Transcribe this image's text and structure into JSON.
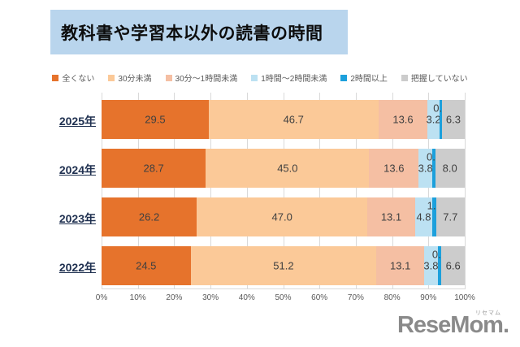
{
  "title": "教科書や学習本以外の読書の時間",
  "chart_data": {
    "type": "bar",
    "stacked": true,
    "orientation": "horizontal",
    "title": "教科書や学習本以外の読書の時間",
    "categories": [
      "2025年",
      "2024年",
      "2023年",
      "2022年"
    ],
    "series": [
      {
        "name": "全くない",
        "color": "#E6732C",
        "values": [
          29.5,
          28.7,
          26.2,
          24.5
        ]
      },
      {
        "name": "30分未満",
        "color": "#FBC998",
        "values": [
          46.7,
          45.0,
          47.0,
          51.2
        ]
      },
      {
        "name": "30分～1時間未満",
        "color": "#F5BFA3",
        "values": [
          13.6,
          13.6,
          13.1,
          13.1
        ]
      },
      {
        "name": "1時間～2時間未満",
        "color": "#BCE1F2",
        "values": [
          3.2,
          3.8,
          4.8,
          3.8
        ]
      },
      {
        "name": "2時間以上",
        "color": "#1CA0DC",
        "values": [
          0.7,
          0.8,
          1.1,
          0.9
        ],
        "label_position": "above"
      },
      {
        "name": "把握していない",
        "color": "#CCCCCC",
        "values": [
          6.3,
          8.0,
          7.7,
          6.6
        ]
      }
    ],
    "x_ticks": [
      "0%",
      "10%",
      "20%",
      "30%",
      "40%",
      "50%",
      "60%",
      "70%",
      "80%",
      "90%",
      "100%"
    ],
    "xlim": [
      0,
      100
    ],
    "grid": true,
    "legend_position": "top",
    "value_label_format": "one-decimal"
  },
  "colors": {
    "title_background": "#B9D5ED",
    "grid": "#D9D9D9",
    "value_label": "#404040",
    "axis_label": "#595959",
    "category_label": "#1F3050",
    "logo": "#8A8A8A"
  },
  "logo": {
    "text": "ReseMom.",
    "sub": "リセマム"
  }
}
